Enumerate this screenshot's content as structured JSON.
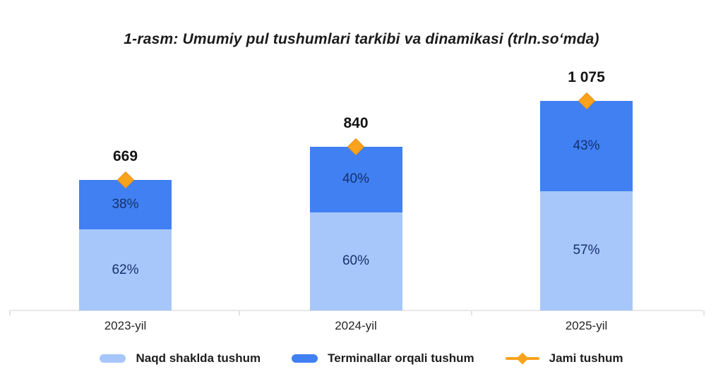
{
  "title": "1-rasm: Umumiy pul tushumlari tarkibi va dinamikasi (trln.so‘mda)",
  "chart_data": {
    "type": "bar",
    "variant": "stacked-percentage-with-total-markers",
    "title": "1-rasm: Umumiy pul tushumlari tarkibi va dinamikasi (trln.so‘mda)",
    "categories": [
      "2023-yil",
      "2024-yil",
      "2025-yil"
    ],
    "totals": [
      669,
      840,
      1075
    ],
    "total_labels": [
      "669",
      "840",
      "1 075"
    ],
    "series": [
      {
        "name": "Naqd shaklda tushum",
        "stack_position": "bottom",
        "values_pct": [
          62,
          60,
          57
        ],
        "labels": [
          "62%",
          "60%",
          "57%"
        ],
        "color": "#a7c7fa"
      },
      {
        "name": "Terminallar orqali tushum",
        "stack_position": "top",
        "values_pct": [
          38,
          40,
          43
        ],
        "labels": [
          "38%",
          "40%",
          "43%"
        ],
        "color": "#4080f2"
      }
    ],
    "marker_series": {
      "name": "Jami tushum",
      "values": [
        669,
        840,
        1075
      ],
      "marker": "diamond",
      "color": "#f9a21b"
    },
    "xlabel": "",
    "ylabel": "",
    "ylim": [
      0,
      1160
    ],
    "grid": false,
    "legend_position": "bottom"
  },
  "legend": {
    "items": [
      {
        "label": "Naqd shaklda tushum",
        "swatch": "rounded-bar",
        "color": "#a7c7fa"
      },
      {
        "label": "Terminallar orqali tushum",
        "swatch": "rounded-bar",
        "color": "#4080f2"
      },
      {
        "label": "Jami tushum",
        "swatch": "line-diamond",
        "color": "#f9a21b"
      }
    ]
  },
  "colors": {
    "cash_segment": "#a7c7fa",
    "terminal_segment": "#4080f2",
    "marker_orange": "#f9a21b",
    "marker_border": "#ea9110",
    "percent_text": "#16316d",
    "axis_line": "#e8e8e8",
    "text_dark": "#1b1b1b"
  }
}
